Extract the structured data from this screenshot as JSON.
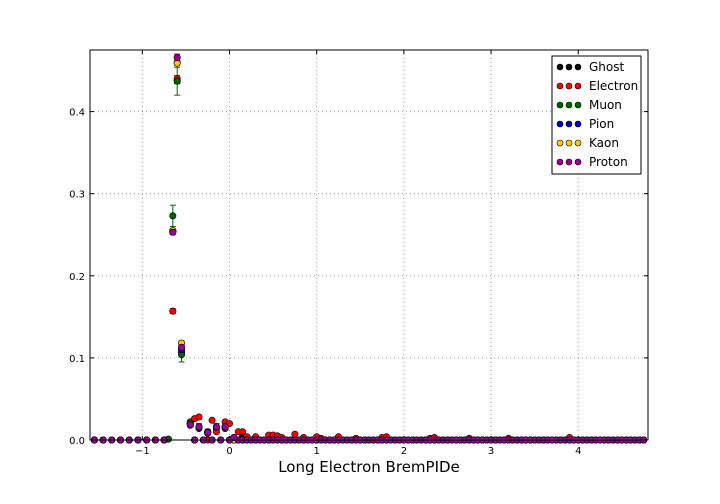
{
  "chart_data": {
    "type": "scatter",
    "title": "",
    "xlabel": "Long Electron BremPIDe",
    "ylabel": "",
    "xlim": [
      -1.6,
      4.8
    ],
    "ylim": [
      0.0,
      0.475
    ],
    "xticks": [
      -1,
      0,
      1,
      2,
      3,
      4
    ],
    "xtick_labels": [
      "−1",
      "0",
      "1",
      "2",
      "3",
      "4"
    ],
    "yticks": [
      0.0,
      0.1,
      0.2,
      0.3,
      0.4
    ],
    "ytick_labels": [
      "0.0",
      "0.1",
      "0.2",
      "0.3",
      "0.4"
    ],
    "grid": true,
    "error_bars": true,
    "legend_position": "top-right",
    "x": [
      -1.55,
      -1.45,
      -1.35,
      -1.25,
      -1.15,
      -1.05,
      -0.95,
      -0.85,
      -0.75,
      -0.65,
      -0.6,
      -0.55,
      -0.45,
      -0.4,
      -0.35,
      -0.3,
      -0.25,
      -0.2,
      -0.15,
      -0.1,
      -0.05,
      0.0,
      0.05,
      0.1,
      0.15,
      0.2,
      0.25,
      0.3,
      0.35,
      0.4,
      0.45,
      0.5,
      0.55,
      0.6,
      0.65,
      0.7,
      0.75,
      0.8,
      0.85,
      0.9,
      0.95,
      1.0,
      1.05,
      1.1,
      1.15,
      1.2,
      1.25,
      1.3,
      1.35,
      1.4,
      1.45,
      1.5,
      1.55,
      1.6,
      1.65,
      1.7,
      1.75,
      1.8,
      1.85,
      1.9,
      1.95,
      2.0,
      2.05,
      2.1,
      2.15,
      2.2,
      2.25,
      2.3,
      2.35,
      2.4,
      2.45,
      2.5,
      2.55,
      2.6,
      2.65,
      2.7,
      2.75,
      2.8,
      2.85,
      2.9,
      2.95,
      3.0,
      3.05,
      3.1,
      3.15,
      3.2,
      3.25,
      3.3,
      3.35,
      3.4,
      3.45,
      3.5,
      3.55,
      3.6,
      3.65,
      3.7,
      3.75,
      3.8,
      3.85,
      3.9,
      3.95,
      4.0,
      4.05,
      4.1,
      4.15,
      4.2,
      4.25,
      4.3,
      4.35,
      4.4,
      4.45,
      4.5,
      4.55,
      4.6,
      4.65,
      4.7,
      4.75
    ],
    "series": [
      {
        "name": "Ghost",
        "color": "#000000",
        "x": [
          -0.65,
          -0.6,
          -0.55,
          -0.45,
          -0.35,
          -0.25,
          -0.15,
          -0.05,
          0.05,
          0.15
        ],
        "values": [
          0.254,
          0.438,
          0.107,
          0.018,
          0.014,
          0.008,
          0.014,
          0.014,
          0.003,
          0.004
        ],
        "errors": [
          0.003,
          0.004,
          0.003,
          0.001,
          0.001,
          0.001,
          0.001,
          0.001,
          0.001,
          0.001
        ]
      },
      {
        "name": "Electron",
        "color": "#ff0000",
        "x": [
          -0.65,
          -0.6,
          -0.55,
          -0.45,
          -0.4,
          -0.35,
          -0.2,
          -0.15,
          -0.05,
          0.0,
          0.1,
          0.15,
          0.2,
          0.3,
          0.45,
          0.5,
          0.55,
          0.6,
          0.75,
          0.85,
          1.0,
          1.05,
          1.25,
          1.45,
          1.75,
          1.8,
          2.3,
          2.35,
          2.75,
          3.2,
          3.9
        ],
        "values": [
          0.157,
          0.44,
          0.112,
          0.022,
          0.026,
          0.028,
          0.024,
          0.01,
          0.022,
          0.02,
          0.01,
          0.01,
          0.004,
          0.004,
          0.006,
          0.006,
          0.005,
          0.003,
          0.007,
          0.003,
          0.004,
          0.002,
          0.004,
          0.002,
          0.003,
          0.004,
          0.002,
          0.003,
          0.002,
          0.002,
          0.003
        ],
        "errors": [
          0.003,
          0.004,
          0.003,
          0.002,
          0.002,
          0.002,
          0.002,
          0.001,
          0.002,
          0.002,
          0.001,
          0.001,
          0.001,
          0.001,
          0.001,
          0.001,
          0.001,
          0.001,
          0.001,
          0.001,
          0.001,
          0.001,
          0.001,
          0.001,
          0.001,
          0.001,
          0.001,
          0.001,
          0.001,
          0.001,
          0.001
        ]
      },
      {
        "name": "Muon",
        "color": "#006400",
        "x": [
          -0.7,
          -0.65,
          -0.6,
          -0.55,
          -0.45,
          -0.35,
          -0.25,
          -0.15,
          -0.05
        ],
        "values": [
          0.001,
          0.273,
          0.437,
          0.104,
          0.02,
          0.016,
          0.01,
          0.016,
          0.016
        ],
        "errors": [
          0.001,
          0.013,
          0.017,
          0.009,
          0.004,
          0.004,
          0.003,
          0.004,
          0.004
        ]
      },
      {
        "name": "Pion",
        "color": "#0000cc",
        "x": [
          -0.65,
          -0.6,
          -0.55,
          -0.45,
          -0.35,
          -0.25,
          -0.15,
          -0.05
        ],
        "values": [
          0.254,
          0.46,
          0.11,
          0.02,
          0.016,
          0.009,
          0.016,
          0.016
        ],
        "errors": [
          0.002,
          0.003,
          0.002,
          0.001,
          0.001,
          0.001,
          0.001,
          0.001
        ]
      },
      {
        "name": "Kaon",
        "color": "#ffcc00",
        "x": [
          -0.65,
          -0.6,
          -0.55,
          -0.45,
          -0.35,
          -0.25,
          -0.15,
          -0.05
        ],
        "values": [
          0.255,
          0.459,
          0.118,
          0.02,
          0.016,
          0.009,
          0.016,
          0.016
        ],
        "errors": [
          0.003,
          0.004,
          0.003,
          0.001,
          0.001,
          0.001,
          0.001,
          0.001
        ]
      },
      {
        "name": "Proton",
        "color": "#990099",
        "x": [
          -0.65,
          -0.6,
          -0.55,
          -0.45,
          -0.35,
          -0.25,
          -0.15,
          -0.05,
          0.05
        ],
        "values": [
          0.253,
          0.466,
          0.113,
          0.019,
          0.016,
          0.009,
          0.016,
          0.016,
          0.003
        ],
        "errors": [
          0.003,
          0.004,
          0.003,
          0.001,
          0.001,
          0.001,
          0.001,
          0.001,
          0.001
        ]
      }
    ]
  }
}
